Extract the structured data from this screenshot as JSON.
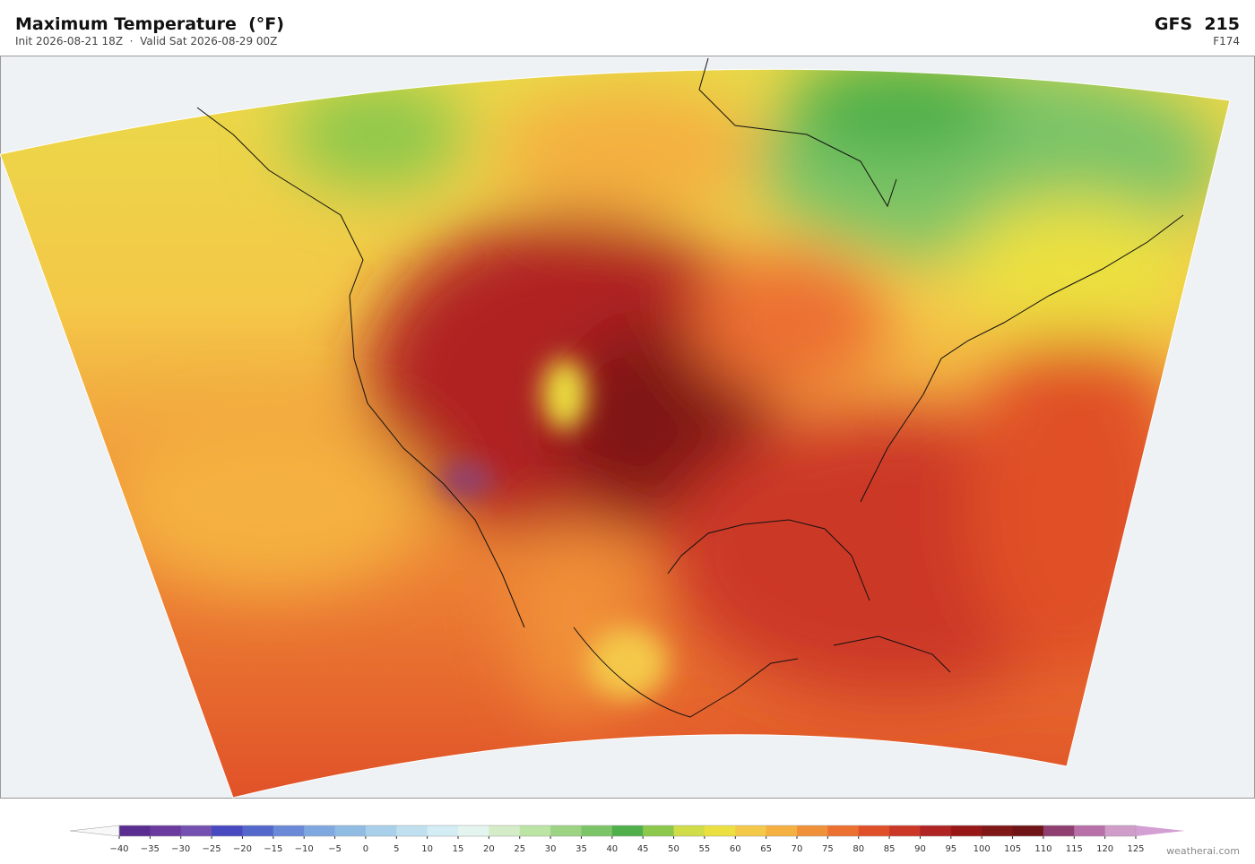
{
  "header": {
    "title": "Maximum Temperature  (°F)",
    "subtitle": "Init 2026-08-21 18Z  ·  Valid Sat 2026-08-29 00Z",
    "model": "GFS  215",
    "forecast_hour": "F174"
  },
  "colorbar": {
    "ticks": [
      {
        "value": -40,
        "label": "−40"
      },
      {
        "value": -35,
        "label": "−35"
      },
      {
        "value": -30,
        "label": "−30"
      },
      {
        "value": -25,
        "label": "−25"
      },
      {
        "value": -20,
        "label": "−20"
      },
      {
        "value": -15,
        "label": "−15"
      },
      {
        "value": -10,
        "label": "−10"
      },
      {
        "value": -5,
        "label": "−5"
      },
      0,
      5,
      10,
      15,
      20,
      25,
      30,
      35,
      40,
      45,
      50,
      55,
      60,
      65,
      70,
      75,
      80,
      85,
      90,
      95,
      100,
      105,
      110,
      115,
      120,
      125
    ],
    "colors": [
      "#5a2d91",
      "#6a3a9e",
      "#7450b0",
      "#4848c0",
      "#5468cc",
      "#6a8ad8",
      "#80a8e0",
      "#90bce4",
      "#a8d0ea",
      "#c0e0f0",
      "#d4ecf4",
      "#e4f4ee",
      "#d4ecc8",
      "#bce4a4",
      "#9cd484",
      "#7cc468",
      "#50b04c",
      "#8cc84c",
      "#d0dc48",
      "#ece040",
      "#f4c848",
      "#f4b040",
      "#f09038",
      "#ec7030",
      "#e05028",
      "#cc3828",
      "#b02424",
      "#981818",
      "#801818",
      "#701418",
      "#904070",
      "#b870a8",
      "#d09cc8"
    ],
    "extend_colors": [
      "#f8f8f8",
      "#d4a0d4"
    ]
  },
  "watermark": "weatherai.com"
}
